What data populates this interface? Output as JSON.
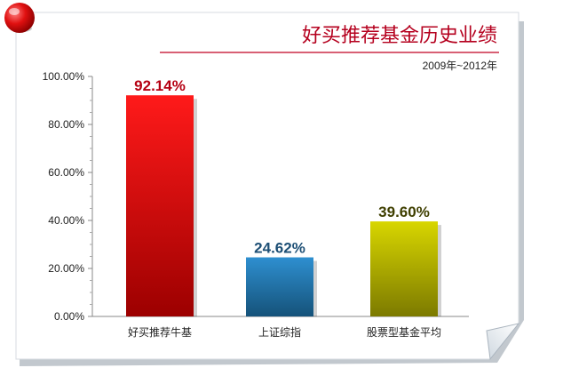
{
  "title": "好买推荐基金历史业绩",
  "subtitle": "2009年~2012年",
  "colors": {
    "title": "#b5001e",
    "bar1": "#d60000",
    "bar2": "#1f6aa0",
    "bar3": "#a8a600",
    "pin": "#e0101a"
  },
  "chart_data": {
    "type": "bar",
    "categories": [
      "好买推荐牛基",
      "上证综指",
      "股票型基金平均"
    ],
    "values": [
      92.14,
      24.62,
      39.6
    ],
    "data_labels": [
      "92.14%",
      "24.62%",
      "39.60%"
    ],
    "y_ticks": [
      "0.00%",
      "20.00%",
      "40.00%",
      "60.00%",
      "80.00%",
      "100.00%"
    ],
    "ylim": [
      0,
      100
    ],
    "grid": false
  }
}
